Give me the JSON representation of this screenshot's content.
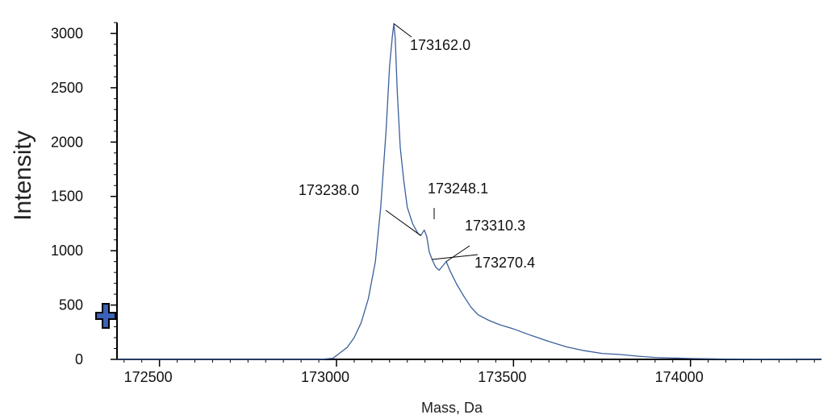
{
  "chart_data": {
    "type": "line",
    "title": "",
    "xlabel": "Mass, Da",
    "ylabel": "Intensity",
    "xlim": [
      172380,
      174370
    ],
    "ylim": [
      0,
      3100
    ],
    "xticks": [
      172500,
      173000,
      173500,
      174000
    ],
    "yticks": [
      0,
      500,
      1000,
      1500,
      2000,
      2500,
      3000
    ],
    "grid": false,
    "line_color": "#3a5f9a",
    "series": [
      {
        "x": [
          172380,
          172600,
          172800,
          172950,
          172990,
          173010,
          173030,
          173050,
          173070,
          173090,
          173110,
          173125,
          173140,
          173150,
          173158,
          173162,
          173166,
          173172,
          173180,
          173190,
          173200,
          173215,
          173230,
          173238,
          173244,
          173248,
          173255,
          173262,
          173270,
          173280,
          173290,
          173300,
          173310,
          173320,
          173340,
          173360,
          173380,
          173400,
          173430,
          173460,
          173500,
          173550,
          173600,
          173650,
          173700,
          173750,
          173800,
          173850,
          173900,
          174000,
          174100,
          174200,
          174370
        ],
        "y": [
          0,
          0,
          0,
          0,
          10,
          60,
          110,
          200,
          340,
          560,
          900,
          1400,
          2100,
          2700,
          2980,
          3090,
          2950,
          2450,
          1950,
          1650,
          1400,
          1250,
          1160,
          1140,
          1170,
          1190,
          1130,
          990,
          920,
          850,
          820,
          860,
          900,
          820,
          690,
          580,
          480,
          410,
          360,
          320,
          280,
          220,
          165,
          115,
          80,
          55,
          45,
          30,
          18,
          8,
          4,
          2,
          0
        ]
      }
    ],
    "annotations": [
      {
        "text": "173162.0",
        "x": 173162,
        "y": 3090
      },
      {
        "text": "173238.0",
        "x": 173238,
        "y": 1140
      },
      {
        "text": "173248.1",
        "x": 173248,
        "y": 1190
      },
      {
        "text": "173310.3",
        "x": 173310,
        "y": 900
      },
      {
        "text": "173270.4",
        "x": 173270,
        "y": 920
      }
    ]
  }
}
